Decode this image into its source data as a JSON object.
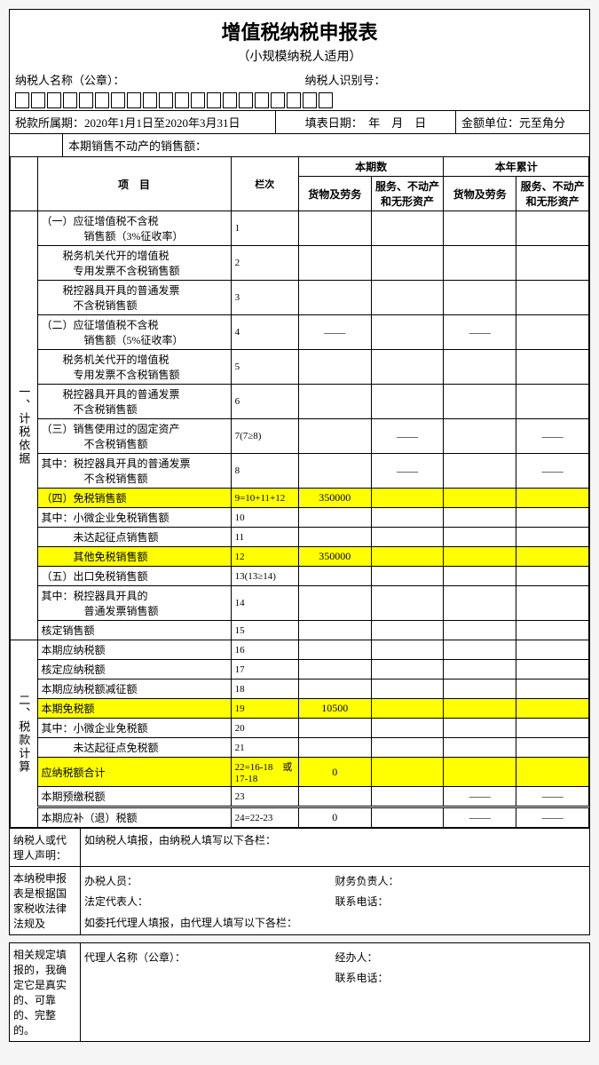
{
  "title": "增值税纳税申报表",
  "subtitle": "（小规模纳税人适用）",
  "header": {
    "name_label": "纳税人名称（公章）：",
    "id_label": "纳税人识别号：",
    "period_label": "税款所属期：",
    "period_value": "2020年1月1日至2020年3月31日",
    "fill_date_label": "填表日期：",
    "fill_date_value": "年　月　日",
    "unit_label": "金额单位：元至角分",
    "prop_sales_label": "本期销售不动产的销售额："
  },
  "col_headers": {
    "project": "项　目",
    "lanci": "栏次",
    "current": "本期数",
    "ytd": "本年累计",
    "goods": "货物及劳务",
    "services": "服务、不动产和无形资产",
    "goods2": "货物及劳务",
    "services2": "服务、不动产和无形资产"
  },
  "section1_label": "一、计税依据",
  "section2_label": "二、税款计算",
  "rows": [
    {
      "label": "（一）应征增值税不含税\n　　　　销售额（3%征收率）",
      "lc": "1",
      "v": [
        "",
        "",
        "",
        ""
      ],
      "hl": false
    },
    {
      "label": "　　税务机关代开的增值税\n　　　专用发票不含税销售额",
      "lc": "2",
      "v": [
        "",
        "",
        "",
        ""
      ],
      "hl": false
    },
    {
      "label": "　　税控器具开具的普通发票\n　　　不含税销售额",
      "lc": "3",
      "v": [
        "",
        "",
        "",
        ""
      ],
      "hl": false
    },
    {
      "label": "（二）应征增值税不含税\n　　　　销售额（5%征收率）",
      "lc": "4",
      "v": [
        "——",
        "",
        "——",
        ""
      ],
      "hl": false
    },
    {
      "label": "　　税务机关代开的增值税\n　　　专用发票不含税销售额",
      "lc": "5",
      "v": [
        "",
        "",
        "",
        ""
      ],
      "hl": false
    },
    {
      "label": "　　税控器具开具的普通发票\n　　　不含税销售额",
      "lc": "6",
      "v": [
        "",
        "",
        "",
        ""
      ],
      "hl": false
    },
    {
      "label": "（三）销售使用过的固定资产\n　　　　不含税销售额",
      "lc": "7(7≥8)",
      "v": [
        "",
        "——",
        "",
        "——"
      ],
      "hl": false
    },
    {
      "label": "其中：税控器具开具的普通发票\n　　　　不含税销售额",
      "lc": "8",
      "v": [
        "",
        "——",
        "",
        "——"
      ],
      "hl": false
    },
    {
      "label": "（四）免税销售额",
      "lc": "9=10+11+12",
      "v": [
        "350000",
        "",
        "",
        ""
      ],
      "hl": true
    },
    {
      "label": "其中：小微企业免税销售额",
      "lc": "10",
      "v": [
        "",
        "",
        "",
        ""
      ],
      "hl": false
    },
    {
      "label": "　　　未达起征点销售额",
      "lc": "11",
      "v": [
        "",
        "",
        "",
        ""
      ],
      "hl": false
    },
    {
      "label": "　　　其他免税销售额",
      "lc": "12",
      "v": [
        "350000",
        "",
        "",
        ""
      ],
      "hl": true
    },
    {
      "label": "（五）出口免税销售额",
      "lc": "13(13≥14)",
      "v": [
        "",
        "",
        "",
        ""
      ],
      "hl": false
    },
    {
      "label": "其中：税控器具开具的\n　　　　普通发票销售额",
      "lc": "14",
      "v": [
        "",
        "",
        "",
        ""
      ],
      "hl": false
    },
    {
      "label": "核定销售额",
      "lc": "15",
      "v": [
        "",
        "",
        "",
        ""
      ],
      "hl": false
    }
  ],
  "rows2": [
    {
      "label": "本期应纳税额",
      "lc": "16",
      "v": [
        "",
        "",
        "",
        ""
      ],
      "hl": false
    },
    {
      "label": "核定应纳税额",
      "lc": "17",
      "v": [
        "",
        "",
        "",
        ""
      ],
      "hl": false
    },
    {
      "label": "本期应纳税额减征额",
      "lc": "18",
      "v": [
        "",
        "",
        "",
        ""
      ],
      "hl": false
    },
    {
      "label": "本期免税额",
      "lc": "19",
      "v": [
        "10500",
        "",
        "",
        ""
      ],
      "hl": true
    },
    {
      "label": "其中：小微企业免税额",
      "lc": "20",
      "v": [
        "",
        "",
        "",
        ""
      ],
      "hl": false
    },
    {
      "label": "　　　未达起征点免税额",
      "lc": "21",
      "v": [
        "",
        "",
        "",
        ""
      ],
      "hl": false
    },
    {
      "label": "应纳税额合计",
      "lc": "22=16-18　或17-18",
      "v": [
        "0",
        "",
        "",
        ""
      ],
      "hl": true
    },
    {
      "label": "本期预缴税额",
      "lc": "23",
      "v": [
        "",
        "",
        "——",
        "——"
      ],
      "hl": false
    },
    {
      "label": "本期应补（退）税额",
      "lc": "24=22-23",
      "v": [
        "0",
        "",
        "——",
        "——"
      ],
      "hl": false,
      "dtop": true
    }
  ],
  "footer1": {
    "left": "纳税人或代理人声明：",
    "r1": "如纳税人填报，由纳税人填写以下各栏："
  },
  "footer2": {
    "left": "本纳税申报表是根据国家税收法律法规及",
    "lines": [
      [
        "办税人员：",
        "财务负责人："
      ],
      [
        "法定代表人：",
        "联系电话："
      ]
    ],
    "r2": "如委托代理人填报，由代理人填写以下各栏："
  },
  "footer3": {
    "left": "相关规定填报的，我确定它是真实的、可靠的、完整的。",
    "lines": [
      [
        "代理人名称（公章）：",
        "经办人："
      ],
      [
        "",
        "联系电话："
      ]
    ]
  },
  "num_boxes": 20,
  "highlight_color": "#ffff00"
}
